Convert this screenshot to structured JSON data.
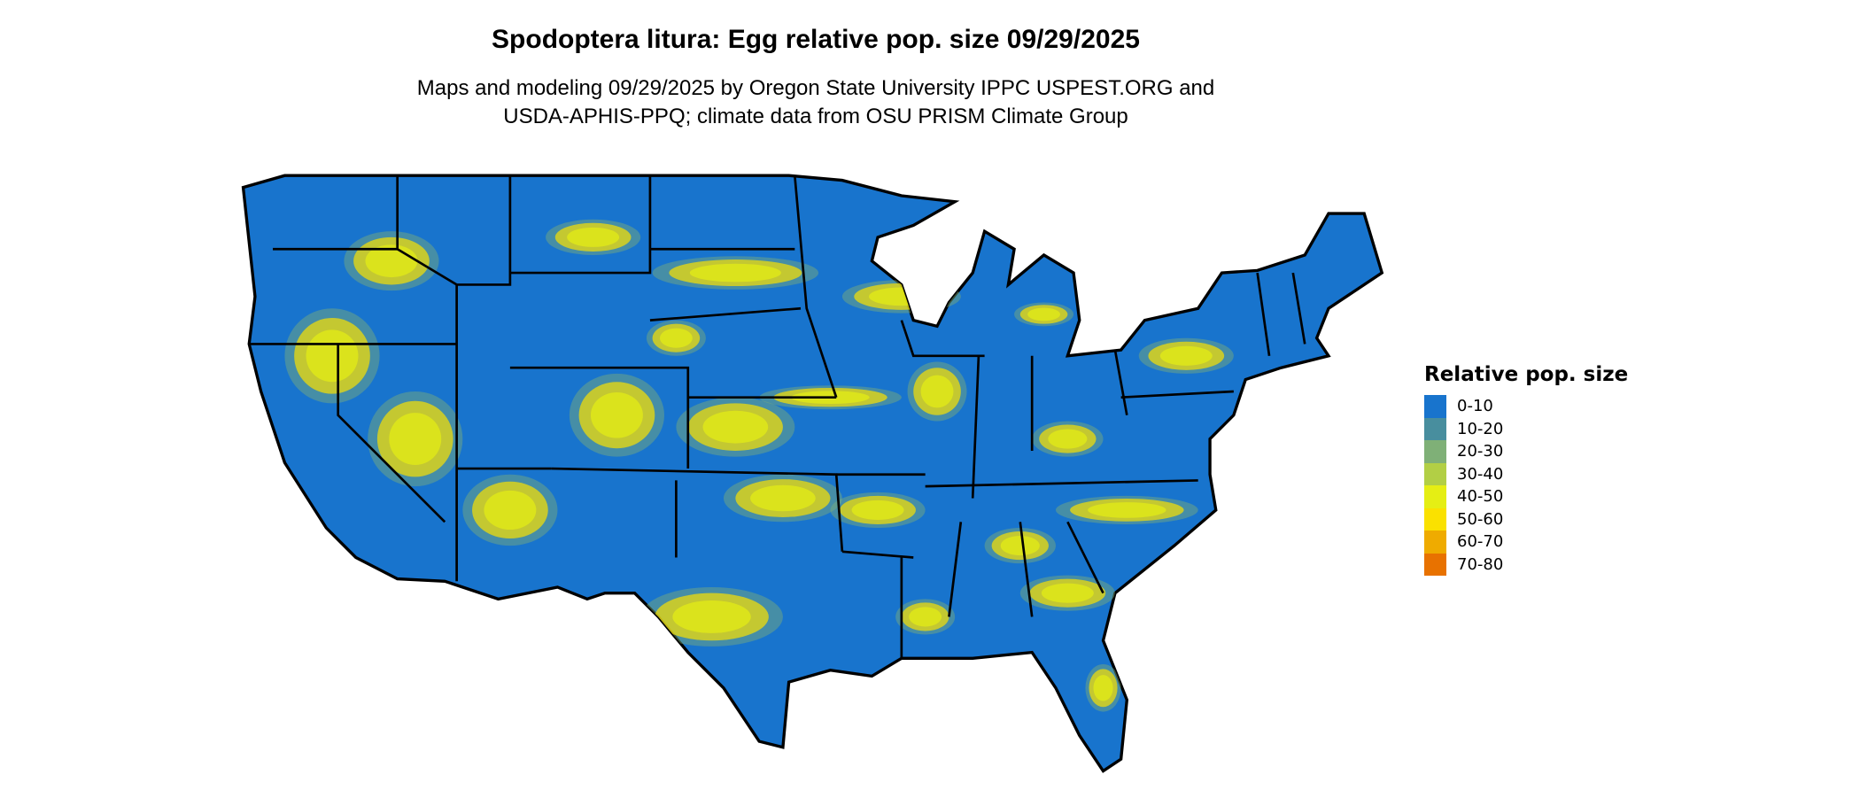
{
  "title": "Spodoptera litura: Egg relative pop. size 09/29/2025",
  "subtitle_lines": [
    "Maps and modeling 09/29/2025 by Oregon State University IPPC USPEST.ORG and",
    "USDA-APHIS-PPQ; climate data from OSU PRISM Climate Group"
  ],
  "chart_data": {
    "type": "heatmap",
    "region": "Contiguous United States",
    "legend": {
      "title": "Relative pop. size",
      "placement": "right",
      "entries": [
        {
          "label": "0-10",
          "color": "#1874CD"
        },
        {
          "label": "10-20",
          "color": "#488E9E"
        },
        {
          "label": "20-30",
          "color": "#7FB077"
        },
        {
          "label": "30-40",
          "color": "#B2CF45"
        },
        {
          "label": "40-50",
          "color": "#E5EE14"
        },
        {
          "label": "50-60",
          "color": "#FAE100"
        },
        {
          "label": "60-70",
          "color": "#EFAB00"
        },
        {
          "label": "70-80",
          "color": "#E87200"
        }
      ]
    }
  }
}
